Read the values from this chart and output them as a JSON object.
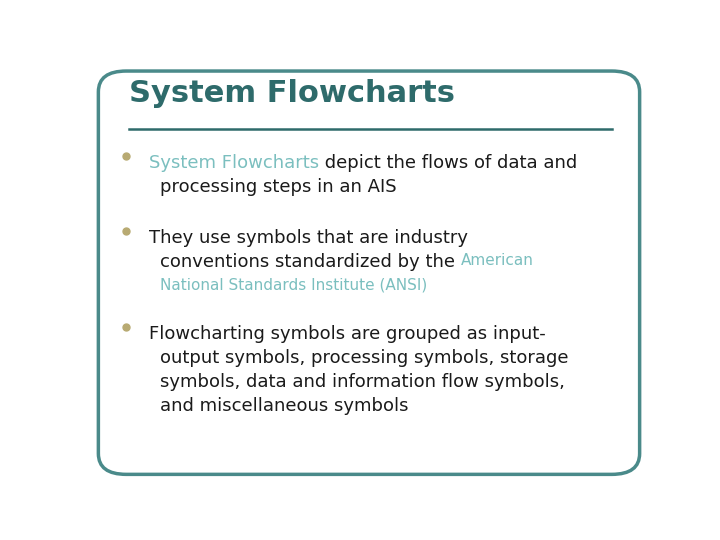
{
  "title": "System Flowcharts",
  "title_color": "#2E6B6B",
  "title_fontsize": 22,
  "line_color": "#2E6B6B",
  "background_color": "#FFFFFF",
  "border_color": "#4A8A8A",
  "bullet_color": "#B8AA72",
  "text_color": "#1A1A1A",
  "highlight_color": "#7BBFBF",
  "body_fontsize": 13,
  "ansi_fontsize": 11,
  "bullet_points": [
    {
      "lines": [
        [
          {
            "text": "System Flowcharts",
            "color": "#7BBFBF"
          },
          {
            "text": " depict the flows of data and",
            "color": "#1A1A1A"
          }
        ],
        [
          {
            "text": "processing steps in an AIS",
            "color": "#1A1A1A"
          }
        ]
      ]
    },
    {
      "lines": [
        [
          {
            "text": "They use symbols that are industry",
            "color": "#1A1A1A"
          }
        ],
        [
          {
            "text": "conventions standardized by the ",
            "color": "#1A1A1A"
          },
          {
            "text": "American",
            "color": "#7BBFBF",
            "small": true
          }
        ],
        [
          {
            "text": "National Standards Institute (ANSI)",
            "color": "#7BBFBF",
            "small": true
          }
        ]
      ]
    },
    {
      "lines": [
        [
          {
            "text": "Flowcharting symbols are grouped as input-",
            "color": "#1A1A1A"
          }
        ],
        [
          {
            "text": "output symbols, processing symbols, storage",
            "color": "#1A1A1A"
          }
        ],
        [
          {
            "text": "symbols, data and information flow symbols,",
            "color": "#1A1A1A"
          }
        ],
        [
          {
            "text": "and miscellaneous symbols",
            "color": "#1A1A1A"
          }
        ]
      ]
    }
  ]
}
